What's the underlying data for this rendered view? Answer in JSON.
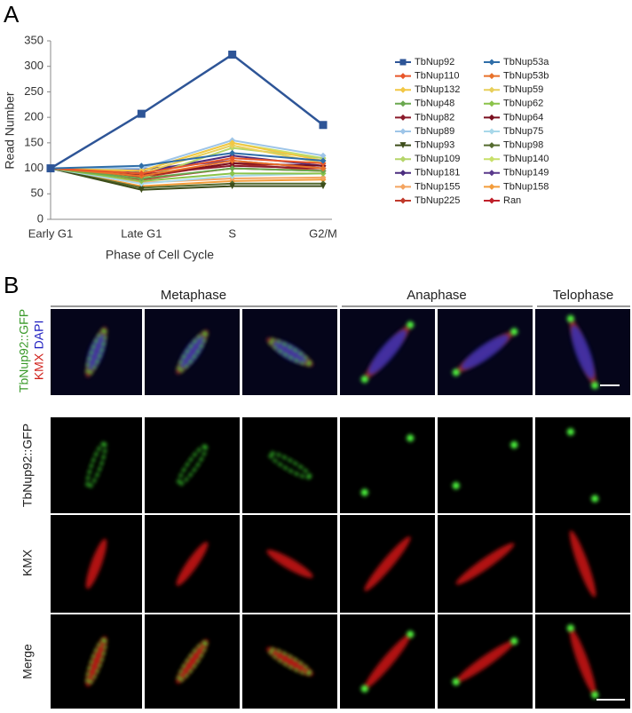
{
  "panel_labels": [
    "A",
    "B"
  ],
  "chart_data": {
    "type": "line",
    "ylabel": "Read Number",
    "xlabel": "Phase of Cell Cycle",
    "categories": [
      "Early G1",
      "Late G1",
      "S",
      "G2/M"
    ],
    "ylim": [
      0,
      350
    ],
    "yticks": [
      0,
      50,
      100,
      150,
      200,
      250,
      300,
      350
    ],
    "series": [
      {
        "name": "TbNup92",
        "color": "#2e5597",
        "marker": "square",
        "values": [
          100,
          207,
          323,
          185
        ]
      },
      {
        "name": "TbNup53a",
        "color": "#2f6ea8",
        "marker": "diamond",
        "values": [
          100,
          105,
          130,
          115
        ]
      },
      {
        "name": "TbNup110",
        "color": "#e8562a",
        "marker": "diamond",
        "values": [
          100,
          90,
          120,
          110
        ]
      },
      {
        "name": "TbNup53b",
        "color": "#e8722a",
        "marker": "diamond",
        "values": [
          100,
          85,
          115,
          100
        ]
      },
      {
        "name": "TbNup132",
        "color": "#f2c744",
        "marker": "diamond",
        "values": [
          100,
          95,
          150,
          115
        ]
      },
      {
        "name": "TbNup59",
        "color": "#e8cf5a",
        "marker": "diamond",
        "values": [
          100,
          90,
          145,
          110
        ]
      },
      {
        "name": "TbNup48",
        "color": "#6aa84f",
        "marker": "diamond",
        "values": [
          100,
          80,
          100,
          95
        ]
      },
      {
        "name": "TbNup62",
        "color": "#8bc34a",
        "marker": "diamond",
        "values": [
          100,
          75,
          90,
          90
        ]
      },
      {
        "name": "TbNup82",
        "color": "#8b1a2b",
        "marker": "diamond",
        "values": [
          100,
          88,
          105,
          100
        ]
      },
      {
        "name": "TbNup64",
        "color": "#7a0f1f",
        "marker": "diamond",
        "values": [
          100,
          85,
          110,
          105
        ]
      },
      {
        "name": "TbNup89",
        "color": "#9ec5e8",
        "marker": "diamond",
        "values": [
          100,
          100,
          155,
          125
        ]
      },
      {
        "name": "TbNup75",
        "color": "#a8d8ea",
        "marker": "diamond",
        "values": [
          100,
          70,
          85,
          90
        ]
      },
      {
        "name": "TbNup93",
        "color": "#3d4d1a",
        "marker": "triangle",
        "values": [
          100,
          58,
          65,
          65
        ]
      },
      {
        "name": "TbNup98",
        "color": "#556b2f",
        "marker": "diamond",
        "values": [
          100,
          62,
          70,
          70
        ]
      },
      {
        "name": "TbNup109",
        "color": "#b5d56a",
        "marker": "diamond",
        "values": [
          100,
          80,
          140,
          120
        ]
      },
      {
        "name": "TbNup140",
        "color": "#c8e06a",
        "marker": "diamond",
        "values": [
          100,
          95,
          150,
          120
        ]
      },
      {
        "name": "TbNup181",
        "color": "#4b2d7f",
        "marker": "diamond",
        "values": [
          100,
          92,
          125,
          105
        ]
      },
      {
        "name": "TbNup149",
        "color": "#5a3a8c",
        "marker": "diamond",
        "values": [
          100,
          98,
          115,
          100
        ]
      },
      {
        "name": "TbNup155",
        "color": "#f4a460",
        "marker": "diamond",
        "values": [
          100,
          72,
          80,
          82
        ]
      },
      {
        "name": "TbNup158",
        "color": "#f39c3a",
        "marker": "diamond",
        "values": [
          100,
          65,
          75,
          78
        ]
      },
      {
        "name": "TbNup225",
        "color": "#c0392b",
        "marker": "diamond",
        "values": [
          100,
          82,
          110,
          95
        ]
      },
      {
        "name": "Ran",
        "color": "#c0202a",
        "marker": "diamond",
        "values": [
          100,
          78,
          100,
          95
        ]
      }
    ]
  },
  "panel_b": {
    "phases": [
      "Metaphase",
      "Anaphase",
      "Telophase"
    ],
    "row_labels": [
      "TbNup92::GFP",
      "KMX",
      "DAPI",
      "TbNup92::GFP",
      "KMX",
      "Merge"
    ]
  }
}
